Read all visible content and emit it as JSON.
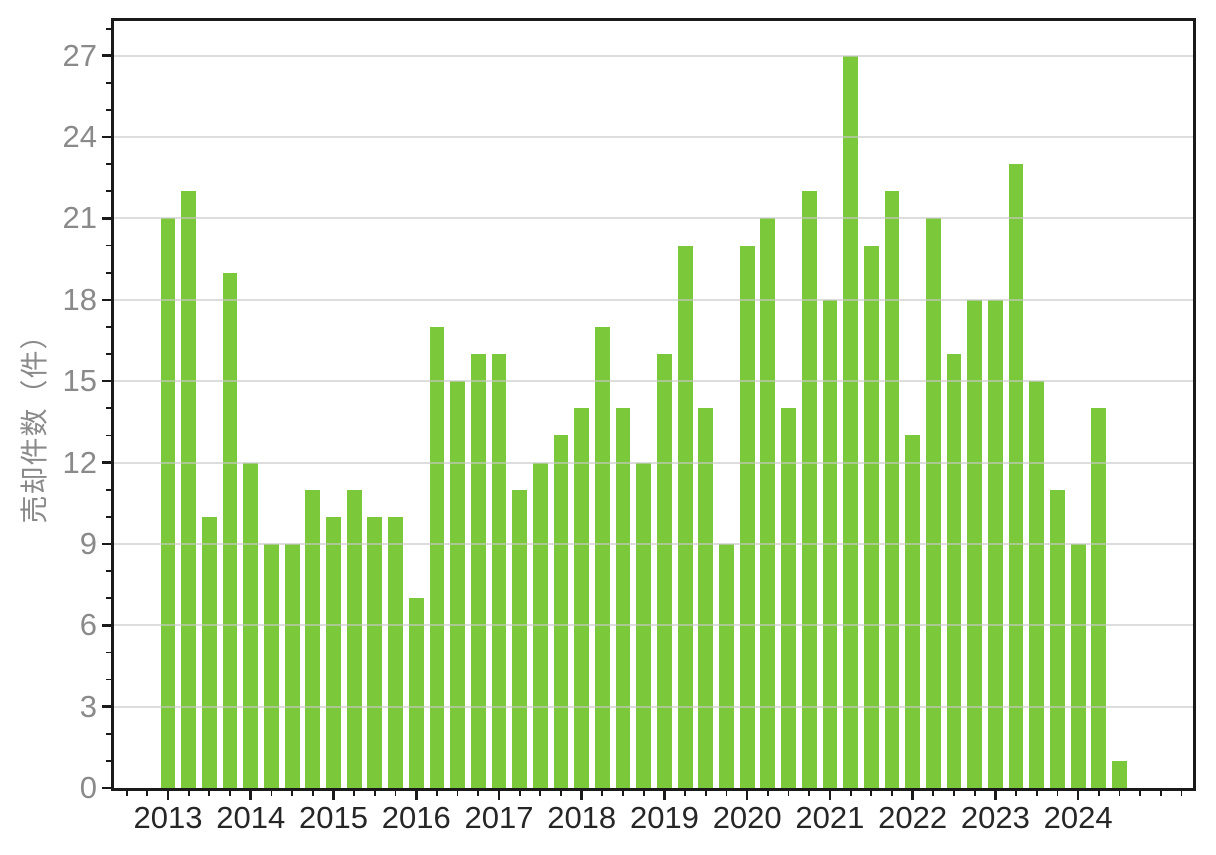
{
  "figure": {
    "background": "#ffffff"
  },
  "chart_data": {
    "type": "bar",
    "title": "",
    "xlabel": "",
    "ylabel": "売却件数（件）",
    "categories": [
      "2013Q1",
      "2013Q2",
      "2013Q3",
      "2013Q4",
      "2014Q1",
      "2014Q2",
      "2014Q3",
      "2014Q4",
      "2015Q1",
      "2015Q2",
      "2015Q3",
      "2015Q4",
      "2016Q1",
      "2016Q2",
      "2016Q3",
      "2016Q4",
      "2017Q1",
      "2017Q2",
      "2017Q3",
      "2017Q4",
      "2018Q1",
      "2018Q2",
      "2018Q3",
      "2018Q4",
      "2019Q1",
      "2019Q2",
      "2019Q3",
      "2019Q4",
      "2020Q1",
      "2020Q2",
      "2020Q3",
      "2020Q4",
      "2021Q1",
      "2021Q2",
      "2021Q3",
      "2021Q4",
      "2022Q1",
      "2022Q2",
      "2022Q3",
      "2022Q4",
      "2023Q1",
      "2023Q2",
      "2023Q3",
      "2023Q4",
      "2024Q1",
      "2024Q2",
      "2024Q3"
    ],
    "values": [
      21,
      22,
      10,
      19,
      12,
      9,
      9,
      11,
      10,
      11,
      10,
      10,
      7,
      17,
      15,
      16,
      16,
      11,
      12,
      13,
      14,
      17,
      14,
      12,
      16,
      20,
      14,
      9,
      20,
      21,
      14,
      22,
      18,
      27,
      20,
      22,
      13,
      21,
      16,
      18,
      18,
      23,
      15,
      11,
      9,
      14,
      1
    ],
    "x_tick_labels": [
      "2013",
      "2014",
      "2015",
      "2016",
      "2017",
      "2018",
      "2019",
      "2020",
      "2021",
      "2022",
      "2023",
      "2024"
    ],
    "y_tick_labels": [
      "0",
      "3",
      "6",
      "9",
      "12",
      "15",
      "18",
      "21",
      "24",
      "27"
    ],
    "y_major_step": 3,
    "y_minor_step": 1,
    "x_minor_unit": "quarter",
    "ylim": [
      0,
      28.3
    ],
    "grid": "horizontal",
    "grid_over_bars": true,
    "colors": {
      "bar": "#7cc83b",
      "grid": "rgba(200,200,200,0.62)",
      "spine": "#1a1a1a",
      "x_tick_label": "#262626",
      "y_tick_label": "#8a8a8a",
      "y_axis_title": "#8a8a8a"
    }
  }
}
